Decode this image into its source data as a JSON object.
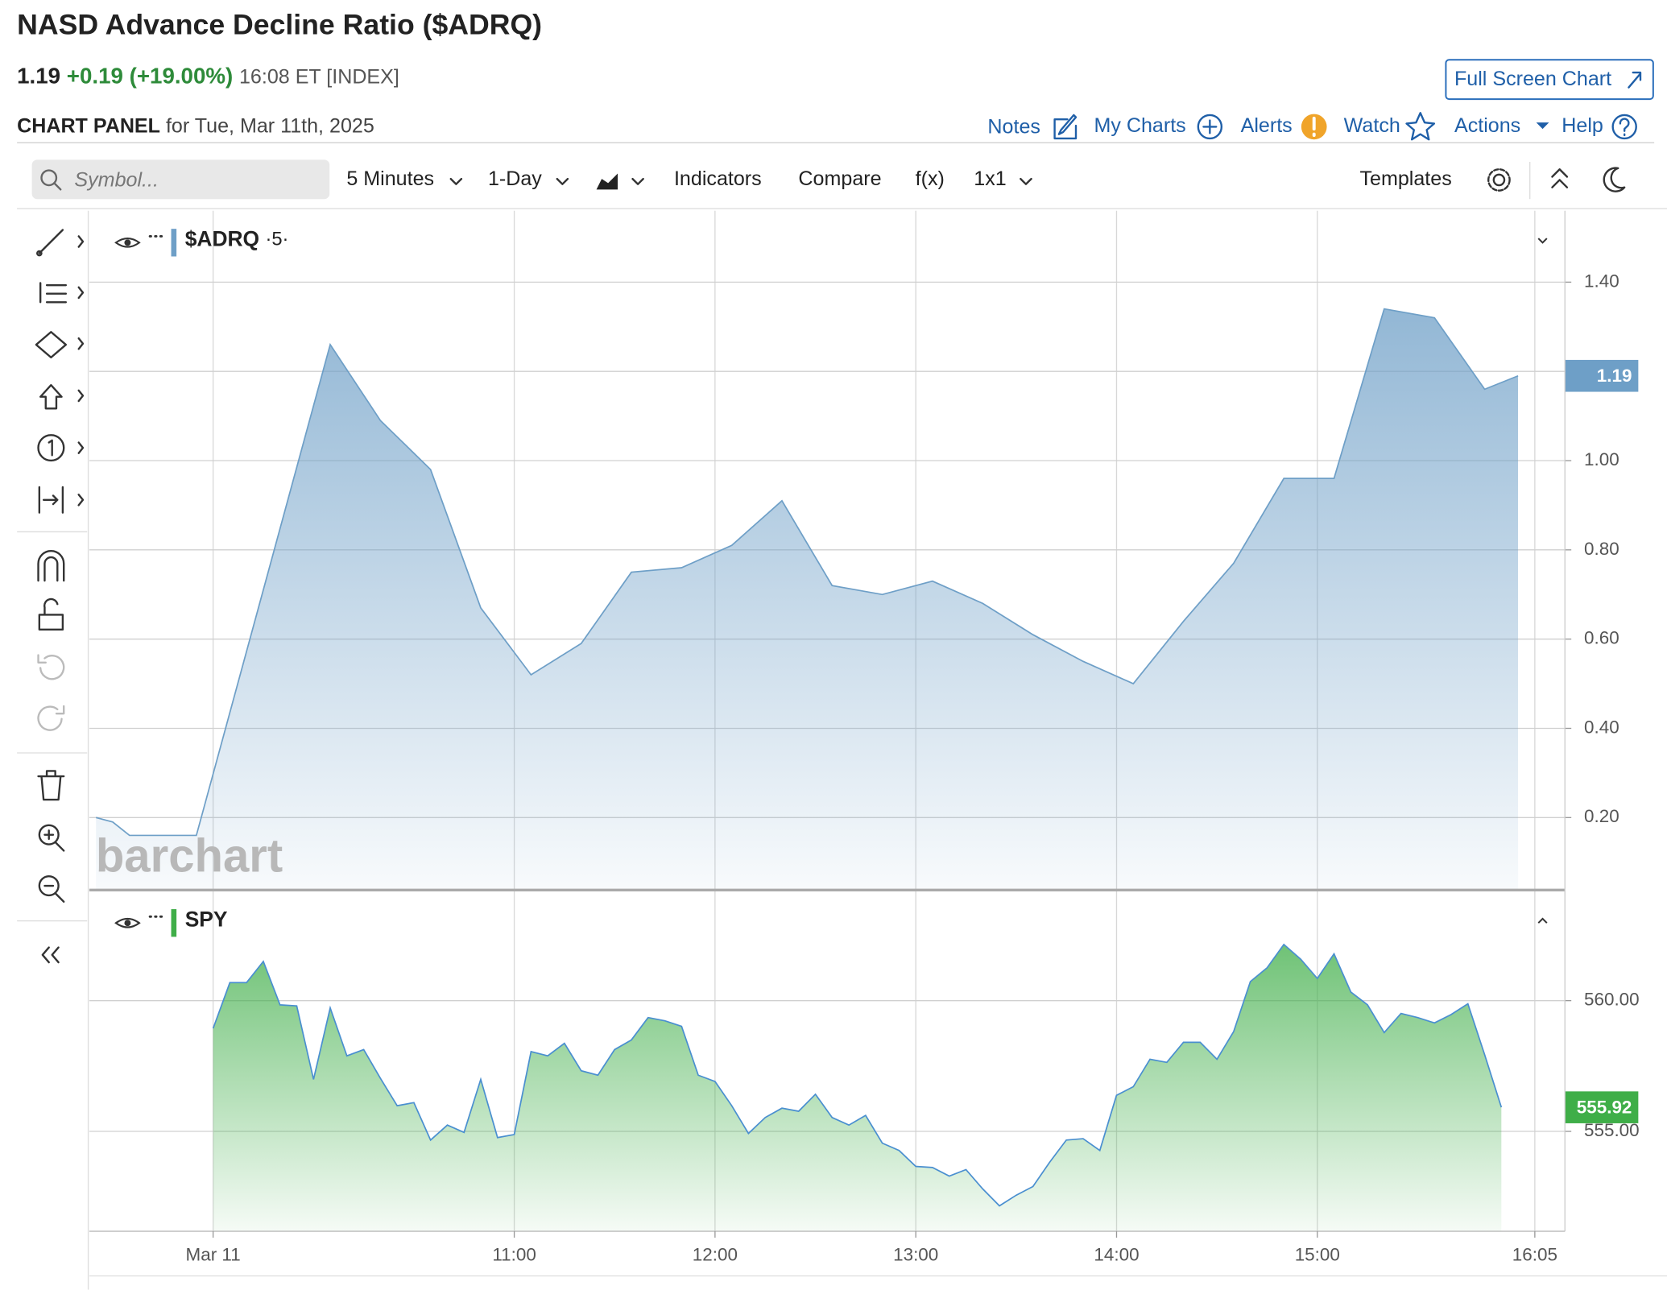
{
  "header": {
    "title": "NASD Advance Decline Ratio ($ADRQ)",
    "last": "1.19",
    "change": "+0.19",
    "change_pct": "(+19.00%)",
    "time": "16:08 ET [INDEX]",
    "full_screen": "Full Screen Chart"
  },
  "panel": {
    "label": "CHART PANEL",
    "date": "for Tue, Mar 11th, 2025"
  },
  "links": [
    "Notes",
    "My Charts",
    "Alerts",
    "Watch",
    "Actions",
    "Help"
  ],
  "toolbar": {
    "search": "Symbol...",
    "interval": "5 Minutes",
    "range": "1-Day",
    "indicators": "Indicators",
    "compare": "Compare",
    "fx": "f(x)",
    "layout": "1x1",
    "templates": "Templates"
  },
  "watermark": "barchart",
  "chart_data": [
    {
      "type": "area",
      "label": "$ADRQ",
      "period": "·5·",
      "color": "#6e9fc7",
      "line_color": "#6e9fc7",
      "xlim": [
        533,
        974
      ],
      "ylim": [
        0.04,
        1.56
      ],
      "yticks": [
        {
          "value": 0.2,
          "label": "0.20"
        },
        {
          "value": 0.4,
          "label": "0.40"
        },
        {
          "value": 0.6,
          "label": "0.60"
        },
        {
          "value": 0.8,
          "label": "0.80"
        },
        {
          "value": 1.0,
          "label": "1.00"
        },
        {
          "value": 1.2,
          "label": "1.20"
        },
        {
          "value": 1.4,
          "label": "1.40"
        }
      ],
      "x": [
        535,
        540,
        545,
        565,
        605,
        620,
        635,
        650,
        665,
        680,
        695,
        710,
        725,
        740,
        755,
        770,
        785,
        800,
        815,
        830,
        845,
        860,
        875,
        890,
        905,
        920,
        935,
        950,
        960
      ],
      "values": [
        0.2,
        0.19,
        0.16,
        0.16,
        1.26,
        1.09,
        0.98,
        0.67,
        0.52,
        0.59,
        0.75,
        0.76,
        0.81,
        0.91,
        0.72,
        0.7,
        0.73,
        0.68,
        0.61,
        0.55,
        0.5,
        0.64,
        0.77,
        0.96,
        0.96,
        1.34,
        1.32,
        1.16,
        1.19
      ],
      "last_label": "1.19"
    },
    {
      "type": "area",
      "label": "SPY",
      "color": "#3fae48",
      "line_color": "#4a8fd0",
      "xlim": [
        533,
        974
      ],
      "ylim": [
        551.18,
        564.19
      ],
      "xticks": [
        {
          "value": 570,
          "label": "Mar 11"
        },
        {
          "value": 660,
          "label": "11:00"
        },
        {
          "value": 720,
          "label": "12:00"
        },
        {
          "value": 780,
          "label": "13:00"
        },
        {
          "value": 840,
          "label": "14:00"
        },
        {
          "value": 900,
          "label": "15:00"
        },
        {
          "value": 965,
          "label": "16:05"
        }
      ],
      "yticks": [
        {
          "value": 555,
          "label": "555.00"
        },
        {
          "value": 560,
          "label": "560.00"
        }
      ],
      "x": [
        570,
        575,
        580,
        585,
        590,
        595,
        600,
        605,
        610,
        615,
        620,
        625,
        630,
        635,
        640,
        645,
        650,
        655,
        660,
        665,
        670,
        675,
        680,
        685,
        690,
        695,
        700,
        705,
        710,
        715,
        720,
        725,
        730,
        735,
        740,
        745,
        750,
        755,
        760,
        765,
        770,
        775,
        780,
        785,
        790,
        795,
        800,
        805,
        810,
        815,
        820,
        825,
        830,
        835,
        840,
        845,
        850,
        855,
        860,
        865,
        870,
        875,
        880,
        885,
        890,
        895,
        900,
        905,
        910,
        915,
        920,
        925,
        930,
        935,
        940,
        945,
        950,
        955
      ],
      "values": [
        558.94,
        560.69,
        560.69,
        561.5,
        559.84,
        559.8,
        556.99,
        559.72,
        557.89,
        558.13,
        557.03,
        555.98,
        556.1,
        554.67,
        555.24,
        554.96,
        556.99,
        554.76,
        554.88,
        558.05,
        557.89,
        558.37,
        557.32,
        557.15,
        558.13,
        558.5,
        559.35,
        559.23,
        559.02,
        557.15,
        556.91,
        555.98,
        554.92,
        555.53,
        555.89,
        555.77,
        556.42,
        555.53,
        555.24,
        555.61,
        554.55,
        554.27,
        553.66,
        553.62,
        553.29,
        553.54,
        552.8,
        552.15,
        552.56,
        552.89,
        553.82,
        554.67,
        554.72,
        554.27,
        556.38,
        556.71,
        557.76,
        557.64,
        558.41,
        558.41,
        557.76,
        558.82,
        560.73,
        561.26,
        562.15,
        561.59,
        560.85,
        561.79,
        560.33,
        559.84,
        558.78,
        559.51,
        559.35,
        559.15,
        559.47,
        559.88,
        557.93,
        555.92
      ],
      "last_label": "555.92"
    }
  ]
}
